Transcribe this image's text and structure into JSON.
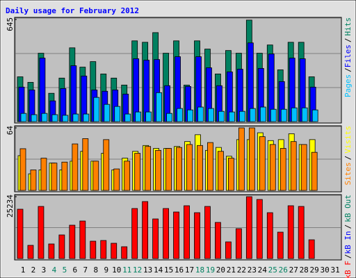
{
  "legend_separator": "/",
  "chart_data": [
    {
      "type": "bar",
      "title": "Daily usage for February 2012",
      "ylim": [
        0,
        645
      ],
      "yticks": [
        645
      ],
      "grid": true,
      "series": [
        {
          "name": "Hits",
          "color": "#008060",
          "values": [
            283,
            248,
            432,
            179,
            275,
            466,
            344,
            379,
            301,
            275,
            231,
            510,
            501,
            562,
            432,
            510,
            231,
            510,
            458,
            301,
            449,
            432,
            641,
            432,
            484,
            327,
            501,
            501,
            283,
            null,
            null
          ]
        },
        {
          "name": "Files",
          "color": "#0000ff",
          "values": [
            218,
            200,
            401,
            131,
            209,
            353,
            288,
            200,
            192,
            200,
            174,
            397,
            388,
            392,
            227,
            410,
            222,
            410,
            340,
            227,
            314,
            331,
            497,
            336,
            427,
            253,
            401,
            397,
            218,
            null,
            null
          ]
        },
        {
          "name": "Pages",
          "color": "#00c0ff",
          "values": [
            52,
            44,
            52,
            44,
            40,
            48,
            48,
            153,
            109,
            96,
            48,
            61,
            61,
            183,
            52,
            83,
            74,
            92,
            83,
            65,
            61,
            65,
            83,
            92,
            78,
            78,
            87,
            87,
            74,
            null,
            null
          ]
        }
      ]
    },
    {
      "type": "bar",
      "ylim": [
        0,
        64
      ],
      "yticks": [
        64
      ],
      "grid": true,
      "series": [
        {
          "name": "Visits",
          "color": "#ffff00",
          "values": [
            35.6,
            17,
            21,
            28,
            21,
            30,
            40,
            30,
            38,
            21,
            33,
            40,
            46,
            43,
            43,
            45,
            50,
            57,
            41,
            44,
            35,
            52,
            52,
            59,
            51,
            52,
            58,
            47,
            52,
            null,
            null
          ]
        },
        {
          "name": "Sites",
          "color": "#ff8000",
          "values": [
            42.7,
            21,
            33,
            28,
            29,
            47.6,
            53,
            30,
            52,
            22,
            30,
            38,
            45,
            41,
            43,
            44,
            47,
            46,
            49,
            40,
            33,
            64,
            64,
            55,
            47,
            43,
            50,
            47,
            39,
            null,
            null
          ]
        }
      ]
    },
    {
      "type": "bar",
      "ylim": [
        0,
        25234
      ],
      "yticks": [
        25234
      ],
      "grid": true,
      "categories": [
        "1",
        "2",
        "3",
        "4",
        "5",
        "6",
        "7",
        "8",
        "9",
        "10",
        "11",
        "12",
        "13",
        "14",
        "15",
        "16",
        "17",
        "18",
        "19",
        "20",
        "21",
        "22",
        "23",
        "24",
        "25",
        "26",
        "27",
        "28",
        "29",
        "30",
        "31"
      ],
      "category_colors": [
        "#000000",
        "#000000",
        "#000000",
        "#008060",
        "#008060",
        "#000000",
        "#000000",
        "#000000",
        "#000000",
        "#000000",
        "#008060",
        "#008060",
        "#000000",
        "#000000",
        "#000000",
        "#000000",
        "#000000",
        "#008060",
        "#008060",
        "#000000",
        "#000000",
        "#000000",
        "#000000",
        "#000000",
        "#008060",
        "#008060",
        "#000000",
        "#000000",
        "#000000",
        "#000000",
        "#000000"
      ],
      "series": [
        {
          "name": "kB Out",
          "color": "#008060",
          "values": [
            null,
            null,
            null,
            null,
            null,
            null,
            null,
            null,
            null,
            null,
            null,
            null,
            null,
            null,
            null,
            null,
            null,
            null,
            null,
            null,
            null,
            null,
            null,
            null,
            null,
            null,
            null,
            null,
            null,
            null,
            null
          ]
        },
        {
          "name": "kB In",
          "color": "#0000ff",
          "values": [
            null,
            null,
            null,
            null,
            null,
            null,
            null,
            null,
            null,
            null,
            null,
            null,
            null,
            null,
            null,
            null,
            null,
            null,
            null,
            null,
            null,
            null,
            null,
            null,
            null,
            null,
            null,
            null,
            null,
            null,
            null
          ]
        },
        {
          "name": "kB F",
          "color": "#ff0000",
          "values": [
            20128,
            5387,
            21262,
            5954,
            9639,
            13608,
            15309,
            7088,
            7371,
            6237,
            4820,
            20412,
            23247,
            16160,
            20412,
            18994,
            21546,
            18711,
            21262,
            14742,
            6804,
            12190,
            25234,
            24099,
            18711,
            10773,
            21546,
            21262,
            7654,
            null,
            null
          ]
        }
      ]
    }
  ]
}
